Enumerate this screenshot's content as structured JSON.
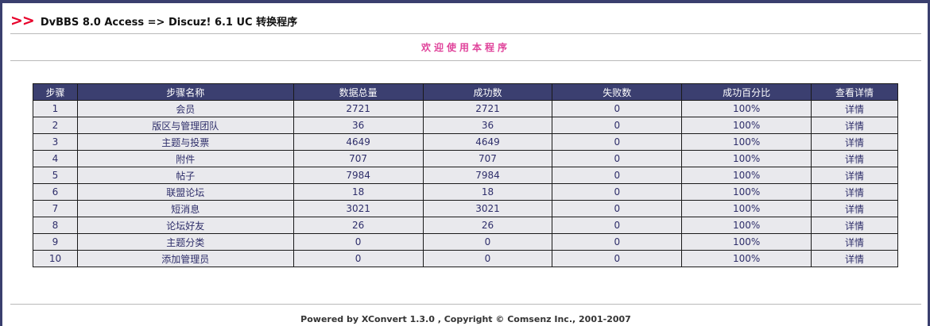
{
  "header": {
    "arrow": ">>",
    "title": "DvBBS 8.0 Access => Discuz! 6.1 UC 转换程序"
  },
  "welcome": "欢迎使用本程序",
  "table": {
    "columns": [
      "步骤",
      "步骤名称",
      "数据总量",
      "成功数",
      "失败数",
      "成功百分比",
      "查看详情"
    ],
    "rows": [
      {
        "step": "1",
        "name": "会员",
        "total": "2721",
        "success": "2721",
        "fail": "0",
        "percent": "100%",
        "detail": "详情"
      },
      {
        "step": "2",
        "name": "版区与管理团队",
        "total": "36",
        "success": "36",
        "fail": "0",
        "percent": "100%",
        "detail": "详情"
      },
      {
        "step": "3",
        "name": "主题与投票",
        "total": "4649",
        "success": "4649",
        "fail": "0",
        "percent": "100%",
        "detail": "详情"
      },
      {
        "step": "4",
        "name": "附件",
        "total": "707",
        "success": "707",
        "fail": "0",
        "percent": "100%",
        "detail": "详情"
      },
      {
        "step": "5",
        "name": "帖子",
        "total": "7984",
        "success": "7984",
        "fail": "0",
        "percent": "100%",
        "detail": "详情"
      },
      {
        "step": "6",
        "name": "联盟论坛",
        "total": "18",
        "success": "18",
        "fail": "0",
        "percent": "100%",
        "detail": "详情"
      },
      {
        "step": "7",
        "name": "短消息",
        "total": "3021",
        "success": "3021",
        "fail": "0",
        "percent": "100%",
        "detail": "详情"
      },
      {
        "step": "8",
        "name": "论坛好友",
        "total": "26",
        "success": "26",
        "fail": "0",
        "percent": "100%",
        "detail": "详情"
      },
      {
        "step": "9",
        "name": "主题分类",
        "total": "0",
        "success": "0",
        "fail": "0",
        "percent": "100%",
        "detail": "详情"
      },
      {
        "step": "10",
        "name": "添加管理员",
        "total": "0",
        "success": "0",
        "fail": "0",
        "percent": "100%",
        "detail": "详情"
      }
    ]
  },
  "footer": "Powered by XConvert 1.3.0 ,  Copyright © Comsenz Inc., 2001-2007"
}
